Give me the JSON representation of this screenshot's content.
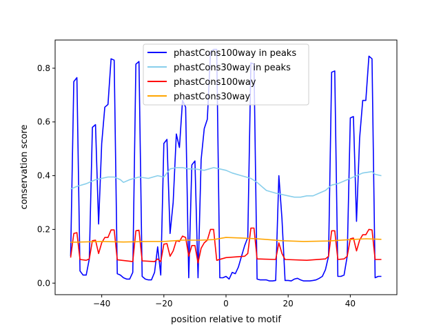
{
  "chart_data": {
    "type": "line",
    "title": "",
    "xlabel": "position relative to motif",
    "ylabel": "conservation score",
    "xlim": [
      -55,
      55
    ],
    "ylim": [
      -0.043,
      0.905
    ],
    "xticks": [
      -40,
      -20,
      0,
      20,
      40
    ],
    "xtick_labels": [
      "−40",
      "−20",
      "0",
      "20",
      "40"
    ],
    "yticks": [
      0.0,
      0.2,
      0.4,
      0.6,
      0.8
    ],
    "ytick_labels": [
      "0.0",
      "0.2",
      "0.4",
      "0.6",
      "0.8"
    ],
    "grid": false,
    "legend_position": "upper-center",
    "series": [
      {
        "name": "phastCons100way in peaks",
        "color": "#0000ff",
        "x": [
          -50,
          -49,
          -48,
          -47,
          -46,
          -45,
          -44,
          -43,
          -42,
          -41,
          -40,
          -39,
          -38,
          -37,
          -36,
          -35,
          -34,
          -33,
          -32,
          -31,
          -30,
          -29,
          -28,
          -27,
          -26,
          -25,
          -24,
          -23,
          -22,
          -21,
          -20,
          -19,
          -18,
          -17,
          -16,
          -15,
          -14,
          -13,
          -12,
          -11,
          -10,
          -9,
          -8,
          -7,
          -6,
          -5,
          -4,
          -3,
          -2,
          -1,
          0,
          1,
          2,
          3,
          4,
          5,
          6,
          7,
          8,
          9,
          10,
          11,
          12,
          13,
          14,
          15,
          16,
          17,
          18,
          19,
          20,
          21,
          22,
          23,
          24,
          25,
          26,
          27,
          28,
          29,
          30,
          31,
          32,
          33,
          34,
          35,
          36,
          37,
          38,
          39,
          40,
          41,
          42,
          43,
          44,
          45,
          46,
          47,
          48,
          49,
          50
        ],
        "y": [
          0.1,
          0.75,
          0.765,
          0.045,
          0.03,
          0.03,
          0.09,
          0.58,
          0.59,
          0.22,
          0.52,
          0.655,
          0.665,
          0.835,
          0.83,
          0.035,
          0.03,
          0.02,
          0.015,
          0.015,
          0.04,
          0.815,
          0.825,
          0.025,
          0.015,
          0.012,
          0.012,
          0.04,
          0.135,
          0.03,
          0.52,
          0.535,
          0.185,
          0.3,
          0.555,
          0.505,
          0.68,
          0.655,
          0.02,
          0.44,
          0.455,
          0.02,
          0.46,
          0.575,
          0.61,
          0.86,
          0.87,
          0.87,
          0.02,
          0.02,
          0.025,
          0.015,
          0.04,
          0.035,
          0.06,
          0.1,
          0.14,
          0.17,
          0.82,
          0.815,
          0.015,
          0.012,
          0.012,
          0.012,
          0.008,
          0.008,
          0.01,
          0.4,
          0.24,
          0.01,
          0.01,
          0.008,
          0.015,
          0.018,
          0.012,
          0.008,
          0.008,
          0.008,
          0.01,
          0.012,
          0.018,
          0.025,
          0.05,
          0.1,
          0.785,
          0.79,
          0.025,
          0.025,
          0.03,
          0.1,
          0.615,
          0.62,
          0.23,
          0.54,
          0.68,
          0.68,
          0.845,
          0.835,
          0.02,
          0.025,
          0.025
        ]
      },
      {
        "name": "phastCons30way in peaks",
        "color": "#87ceeb",
        "x": [
          -50,
          -48,
          -45,
          -42,
          -40,
          -38,
          -36,
          -34,
          -33,
          -31,
          -28,
          -25,
          -22,
          -20,
          -18,
          -16,
          -14,
          -12,
          -10,
          -7,
          -4,
          -2,
          0,
          2,
          5,
          8,
          10,
          12,
          13,
          16,
          20,
          22,
          24,
          26,
          28,
          30,
          32,
          34,
          36,
          38,
          40,
          42,
          44,
          47,
          48,
          50
        ],
        "y": [
          0.35,
          0.36,
          0.37,
          0.385,
          0.39,
          0.395,
          0.395,
          0.385,
          0.375,
          0.385,
          0.395,
          0.39,
          0.4,
          0.395,
          0.425,
          0.43,
          0.43,
          0.425,
          0.425,
          0.42,
          0.43,
          0.425,
          0.42,
          0.41,
          0.4,
          0.39,
          0.375,
          0.355,
          0.345,
          0.335,
          0.325,
          0.32,
          0.32,
          0.325,
          0.325,
          0.335,
          0.345,
          0.365,
          0.37,
          0.38,
          0.39,
          0.4,
          0.41,
          0.415,
          0.405,
          0.4
        ]
      },
      {
        "name": "phastCons100way",
        "color": "#ff0000",
        "x": [
          -50,
          -49,
          -48,
          -47,
          -45,
          -44,
          -43,
          -42,
          -41,
          -40,
          -39,
          -38,
          -37,
          -36,
          -35,
          -30,
          -29,
          -28,
          -27,
          -23,
          -22,
          -21,
          -20,
          -19,
          -18,
          -17,
          -16,
          -15,
          -14,
          -13,
          -12,
          -11,
          -10,
          -9,
          -8,
          -7,
          -6,
          -5,
          -4,
          -3,
          0,
          6,
          7,
          8,
          9,
          10,
          16,
          17,
          18,
          19,
          26,
          32,
          33,
          34,
          35,
          36,
          38,
          39,
          40,
          41,
          42,
          43,
          44,
          45,
          46,
          47,
          48,
          50
        ],
        "y": [
          0.095,
          0.185,
          0.188,
          0.088,
          0.085,
          0.09,
          0.158,
          0.16,
          0.11,
          0.15,
          0.17,
          0.17,
          0.198,
          0.198,
          0.087,
          0.08,
          0.195,
          0.197,
          0.083,
          0.08,
          0.09,
          0.08,
          0.145,
          0.147,
          0.1,
          0.12,
          0.158,
          0.155,
          0.175,
          0.17,
          0.1,
          0.14,
          0.14,
          0.075,
          0.13,
          0.15,
          0.16,
          0.2,
          0.2,
          0.085,
          0.095,
          0.1,
          0.11,
          0.205,
          0.205,
          0.09,
          0.088,
          0.15,
          0.11,
          0.088,
          0.085,
          0.09,
          0.1,
          0.195,
          0.195,
          0.088,
          0.09,
          0.1,
          0.165,
          0.168,
          0.12,
          0.16,
          0.18,
          0.18,
          0.2,
          0.198,
          0.088,
          0.088
        ]
      },
      {
        "name": "phastCons30way",
        "color": "#ffa500",
        "x": [
          -50,
          -40,
          -33,
          -25,
          -20,
          -14,
          -8,
          -4,
          0,
          5,
          10,
          18,
          25,
          33,
          40,
          45,
          50
        ],
        "y": [
          0.152,
          0.155,
          0.153,
          0.155,
          0.155,
          0.16,
          0.16,
          0.162,
          0.17,
          0.168,
          0.165,
          0.158,
          0.155,
          0.157,
          0.162,
          0.165,
          0.163
        ]
      }
    ]
  }
}
